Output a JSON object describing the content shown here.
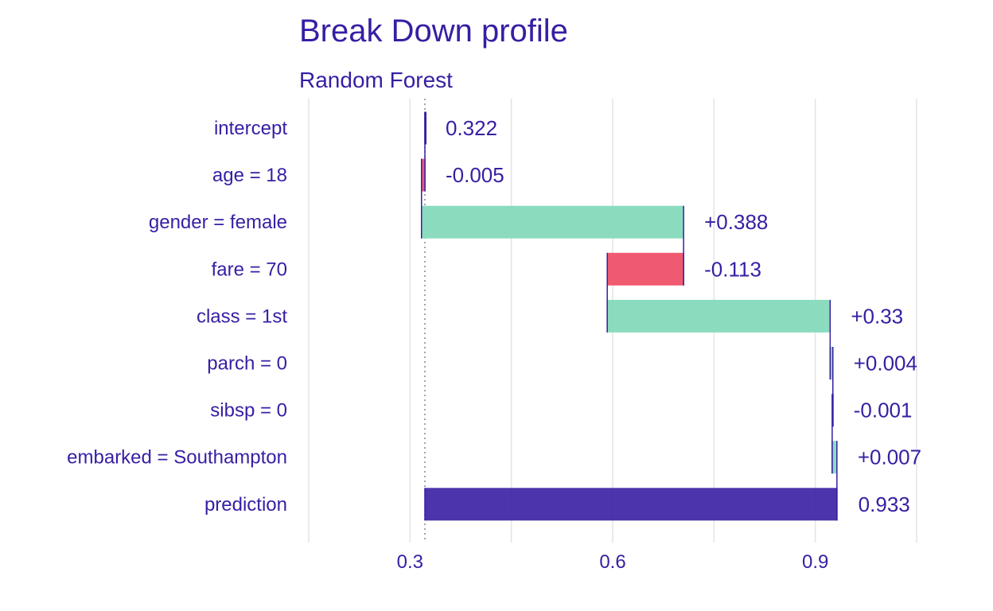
{
  "chart_data": {
    "type": "bar",
    "subtype": "waterfall",
    "title": "Break Down profile",
    "subtitle": "Random Forest",
    "categories": [
      "intercept",
      "age = 18",
      "gender = female",
      "fare = 70",
      "class = 1st",
      "parch = 0",
      "sibsp = 0",
      "embarked = Southampton",
      "prediction"
    ],
    "contributions": [
      0.322,
      -0.005,
      0.388,
      -0.113,
      0.33,
      0.004,
      -0.001,
      0.007,
      0.933
    ],
    "value_labels": [
      "0.322",
      "-0.005",
      "+0.388",
      "-0.113",
      "+0.33",
      "+0.004",
      "-0.001",
      "+0.007",
      "0.933"
    ],
    "baseline": 0.322,
    "xlim": [
      0.15,
      1.05
    ],
    "x_ticks": [
      0.3,
      0.6,
      0.9
    ],
    "x_tick_labels": [
      "0.3",
      "0.6",
      "0.9"
    ],
    "grid": true,
    "colors": {
      "text": "#371ea3",
      "positive": "#8bdcbe",
      "negative": "#f05a71",
      "prediction": "#371ea3",
      "connector": "#371ea3",
      "grid": "#e4e4e4",
      "baseline_line": "#888888"
    }
  }
}
